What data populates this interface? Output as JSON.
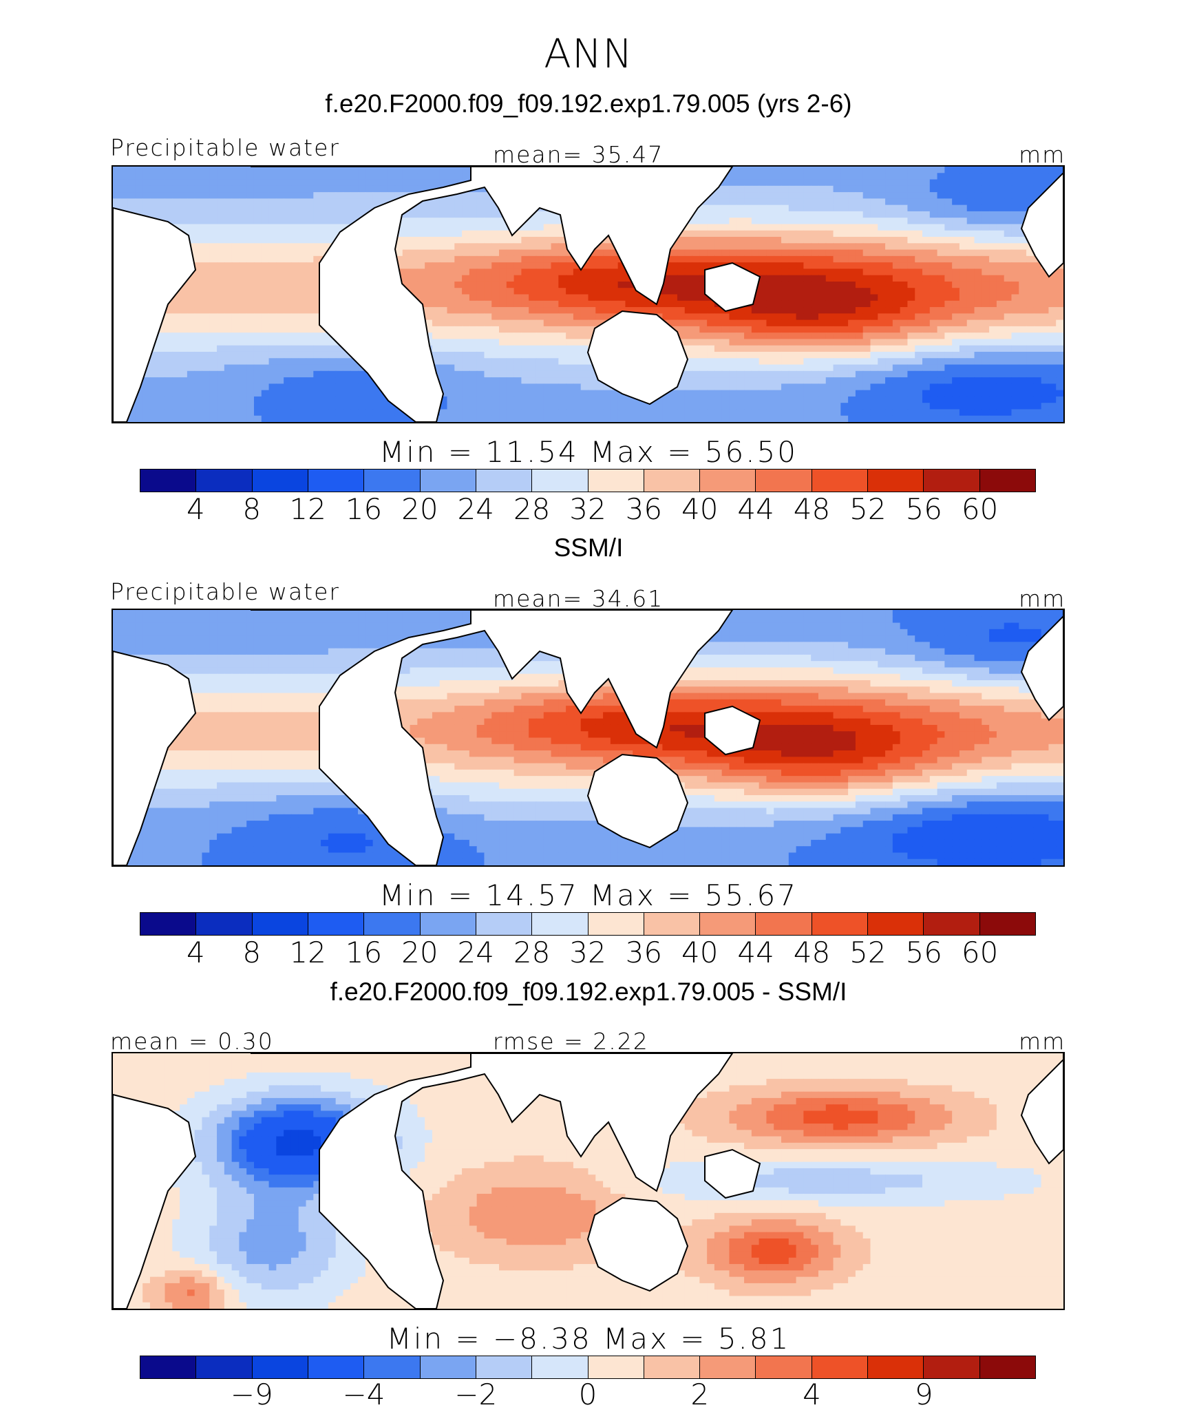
{
  "title": "ANN",
  "colors": {
    "scale": [
      "#0a0a8c",
      "#0b2dbf",
      "#0a45e0",
      "#1e5cf2",
      "#3c78f0",
      "#7aa5f2",
      "#b5cdf7",
      "#d6e6fa",
      "#fde5d2",
      "#f9c2a6",
      "#f59a78",
      "#f2754f",
      "#ee5228",
      "#da3008",
      "#b21e10",
      "#8c0a0a"
    ],
    "land": "#ffffff",
    "coast": "#000000"
  },
  "panels": [
    {
      "title": "f.e20.F2000.f09_f09.192.exp1.79.005 (yrs 2-6)",
      "left_label": "Precipitable water",
      "center_label": "mean=   35.47",
      "right_label": "mm",
      "minmax": "Min  =    11.54  Max  =    56.50",
      "ticks": [
        "4",
        "8",
        "12",
        "16",
        "20",
        "24",
        "28",
        "32",
        "36",
        "40",
        "44",
        "48",
        "52",
        "56",
        "60"
      ],
      "field": "model"
    },
    {
      "title": "SSM/I",
      "left_label": "Precipitable water",
      "center_label": "mean=   34.61",
      "right_label": "mm",
      "minmax": "Min  =    14.57  Max  =    55.67",
      "ticks": [
        "4",
        "8",
        "12",
        "16",
        "20",
        "24",
        "28",
        "32",
        "36",
        "40",
        "44",
        "48",
        "52",
        "56",
        "60"
      ],
      "field": "obs"
    },
    {
      "title": "f.e20.F2000.f09_f09.192.exp1.79.005 - SSM/I",
      "left_label": "mean =    0.30",
      "center_label": "rmse  =    2.22",
      "right_label": "mm",
      "minmax": "Min  =   −8.38  Max  =      5.81",
      "ticks": [
        "−9",
        "−4",
        "−2",
        "0",
        "2",
        "4",
        "9"
      ],
      "tick_slots": [
        1,
        3,
        5,
        7,
        9,
        11,
        13
      ],
      "field": "diff"
    }
  ]
}
